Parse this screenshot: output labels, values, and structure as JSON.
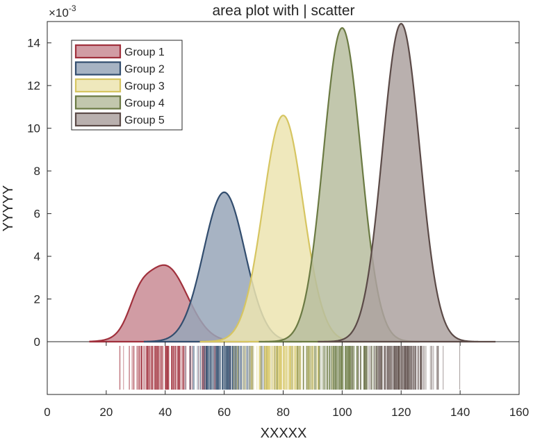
{
  "chart_data": {
    "type": "area",
    "title": "area plot with | scatter",
    "xlabel": "XXXXX",
    "ylabel": "YYYYY",
    "y_exponent_label": "×10",
    "y_exponent_power": "-3",
    "xlim": [
      0,
      160
    ],
    "ylim": [
      0,
      15
    ],
    "x_ticks": [
      0,
      20,
      40,
      60,
      80,
      100,
      120,
      140,
      160
    ],
    "y_ticks": [
      0,
      2,
      4,
      6,
      8,
      10,
      12,
      14
    ],
    "grid": false,
    "legend_position": "top-left",
    "series": [
      {
        "name": "Group 1",
        "color": "#a0303c",
        "fill": "#c98b94",
        "mean": 40,
        "sd": 7.5,
        "peak": 3.55,
        "x_range": [
          20.5,
          62
        ],
        "shoulder": {
          "x": 31,
          "amp": 0.9,
          "sd": 3.5
        }
      },
      {
        "name": "Group 2",
        "color": "#324d6e",
        "fill": "#98a6b8",
        "mean": 60,
        "sd": 7.0,
        "peak": 7.0,
        "x_range": [
          39,
          80
        ]
      },
      {
        "name": "Group 3",
        "color": "#d6c561",
        "fill": "#ece4b0",
        "mean": 80,
        "sd": 6.8,
        "peak": 10.6,
        "x_range": [
          58,
          101
        ]
      },
      {
        "name": "Group 4",
        "color": "#6b7a43",
        "fill": "#b7bd9f",
        "mean": 100,
        "sd": 6.3,
        "peak": 14.7,
        "x_range": [
          78,
          120
        ]
      },
      {
        "name": "Group 5",
        "color": "#5b4a47",
        "fill": "#ada2a0",
        "mean": 120,
        "sd": 6.3,
        "peak": 14.9,
        "x_range": [
          98,
          146
        ]
      }
    ]
  }
}
